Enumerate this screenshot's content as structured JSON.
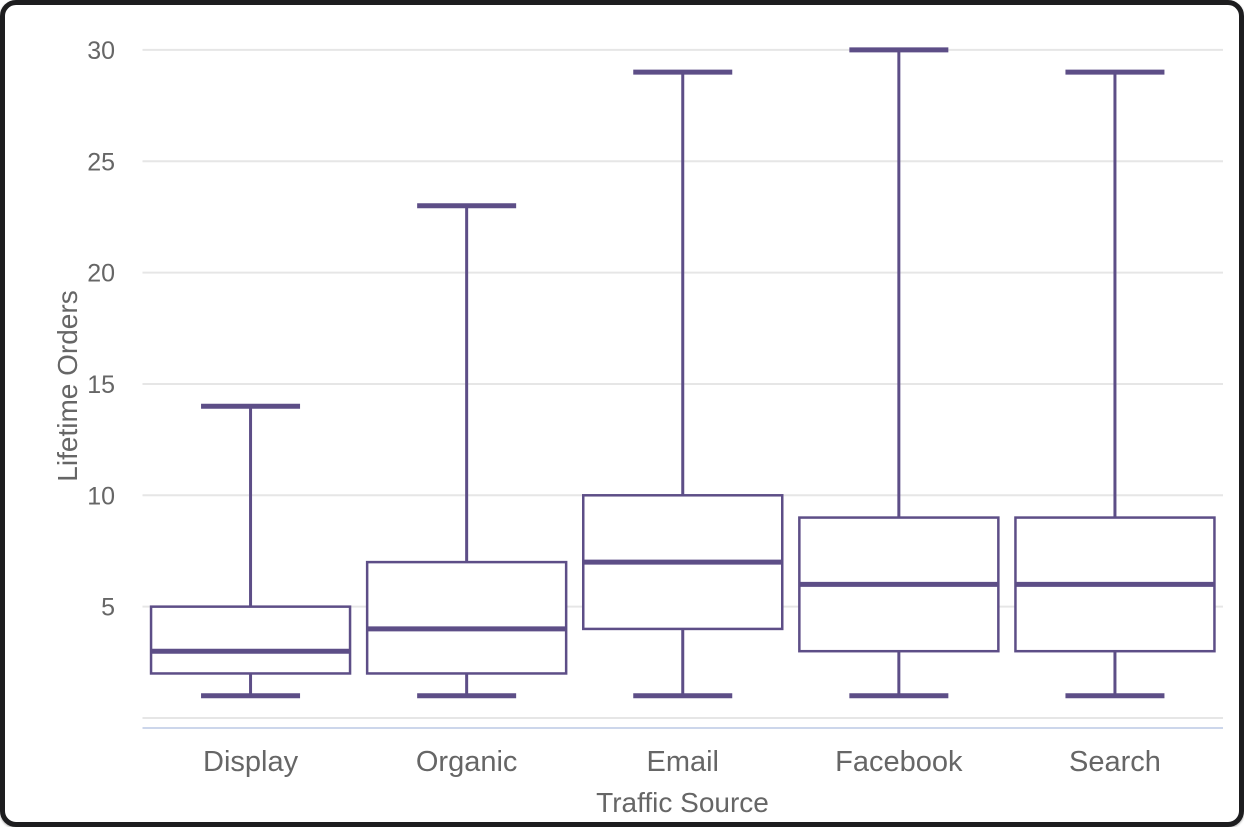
{
  "chart_data": {
    "type": "boxplot",
    "title": "",
    "xlabel": "Traffic Source",
    "ylabel": "Lifetime Orders",
    "categories": [
      "Display",
      "Organic",
      "Email",
      "Facebook",
      "Search"
    ],
    "series": [
      {
        "points": [
          {
            "category": "Display",
            "low": 1,
            "q1": 2,
            "median": 3,
            "q3": 5,
            "high": 14
          },
          {
            "category": "Organic",
            "low": 1,
            "q1": 2,
            "median": 4,
            "q3": 7,
            "high": 23
          },
          {
            "category": "Email",
            "low": 1,
            "q1": 4,
            "median": 7,
            "q3": 10,
            "high": 29
          },
          {
            "category": "Facebook",
            "low": 1,
            "q1": 3,
            "median": 6,
            "q3": 9,
            "high": 30
          },
          {
            "category": "Search",
            "low": 1,
            "q1": 3,
            "median": 6,
            "q3": 9,
            "high": 29
          }
        ]
      }
    ],
    "y_tick_labels": [
      "5",
      "10",
      "15",
      "20",
      "25",
      "30"
    ],
    "y_gridlines": [
      0,
      5,
      10,
      15,
      20,
      25,
      30
    ],
    "ylim": [
      0,
      30.5
    ],
    "grid": true,
    "legend": "none",
    "colors": {
      "box_stroke": "#5D4E87",
      "box_fill": "#ffffff",
      "gridline": "#e6e6e6",
      "axis_line": "#ccd6eb",
      "label_text": "#666666",
      "background": "#ffffff",
      "frame": "#1d1d1f"
    }
  }
}
